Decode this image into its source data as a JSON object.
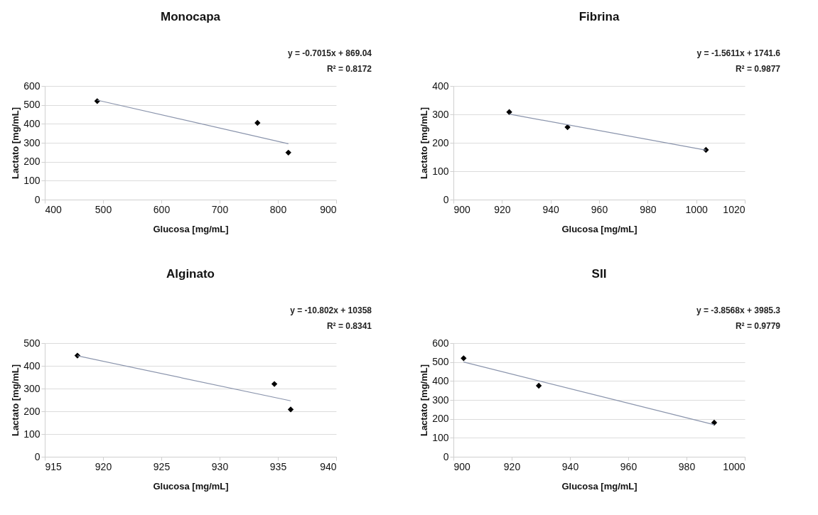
{
  "chart_data": [
    {
      "type": "scatter",
      "title": "Monocapa",
      "xlabel": "Glucosa [mg/mL]",
      "ylabel": "Lactato [mg/mL]",
      "annotations": [
        "y = -0.7015x + 869.04",
        "R² = 0.8172"
      ],
      "xlim": [
        400,
        900
      ],
      "xticks": [
        400,
        500,
        600,
        700,
        800,
        900
      ],
      "ylim": [
        0,
        600
      ],
      "yticks": [
        0,
        100,
        200,
        300,
        400,
        500,
        600
      ],
      "grid": "y",
      "series": [
        {
          "marker": "diamond",
          "color": "#000000",
          "x": [
            490,
            765,
            818
          ],
          "values": [
            520,
            405,
            248
          ]
        },
        {
          "type": "line",
          "color": "#8a94ac",
          "x": [
            490,
            818
          ],
          "values": [
            525,
            295
          ]
        }
      ]
    },
    {
      "type": "scatter",
      "title": "Fibrina",
      "xlabel": "Glucosa [mg/mL]",
      "ylabel": "Lactato [mg/mL]",
      "annotations": [
        "y = -1.5611x + 1741.6",
        "R² = 0.9877"
      ],
      "xlim": [
        900,
        1020
      ],
      "xticks": [
        900,
        920,
        940,
        960,
        980,
        1000,
        1020
      ],
      "ylim": [
        0,
        400
      ],
      "yticks": [
        0,
        100,
        200,
        300,
        400
      ],
      "grid": "y",
      "series": [
        {
          "marker": "diamond",
          "color": "#000000",
          "x": [
            923,
            947,
            1004
          ],
          "values": [
            308,
            255,
            175
          ]
        },
        {
          "type": "line",
          "color": "#8a94ac",
          "x": [
            923,
            1004
          ],
          "values": [
            301,
            174
          ]
        }
      ]
    },
    {
      "type": "scatter",
      "title": "Alginato",
      "xlabel": "Glucosa [mg/mL]",
      "ylabel": "Lactato [mg/mL]",
      "annotations": [
        "y = -10.802x + 10358",
        "R² = 0.8341"
      ],
      "xlim": [
        915,
        940
      ],
      "xticks": [
        915,
        920,
        925,
        930,
        935,
        940
      ],
      "ylim": [
        0,
        500
      ],
      "yticks": [
        0,
        100,
        200,
        300,
        400,
        500
      ],
      "grid": "y",
      "series": [
        {
          "marker": "diamond",
          "color": "#000000",
          "x": [
            917.8,
            934.7,
            936.1
          ],
          "values": [
            445,
            320,
            208
          ]
        },
        {
          "type": "line",
          "color": "#8a94ac",
          "x": [
            917.8,
            936.1
          ],
          "values": [
            444,
            246
          ]
        }
      ]
    },
    {
      "type": "scatter",
      "title": "SII",
      "xlabel": "Glucosa [mg/mL]",
      "ylabel": "Lactato [mg/mL]",
      "annotations": [
        "y = -3.8568x + 3985.3",
        "R² = 0.9779"
      ],
      "xlim": [
        900,
        1000
      ],
      "xticks": [
        900,
        920,
        940,
        960,
        980,
        1000
      ],
      "ylim": [
        0,
        600
      ],
      "yticks": [
        0,
        100,
        200,
        300,
        400,
        500,
        600
      ],
      "grid": "y",
      "series": [
        {
          "marker": "diamond",
          "color": "#000000",
          "x": [
            903.5,
            929.3,
            989.5
          ],
          "values": [
            520,
            375,
            180
          ]
        },
        {
          "type": "line",
          "color": "#8a94ac",
          "x": [
            903.5,
            989.5
          ],
          "values": [
            500,
            169
          ]
        }
      ]
    }
  ]
}
